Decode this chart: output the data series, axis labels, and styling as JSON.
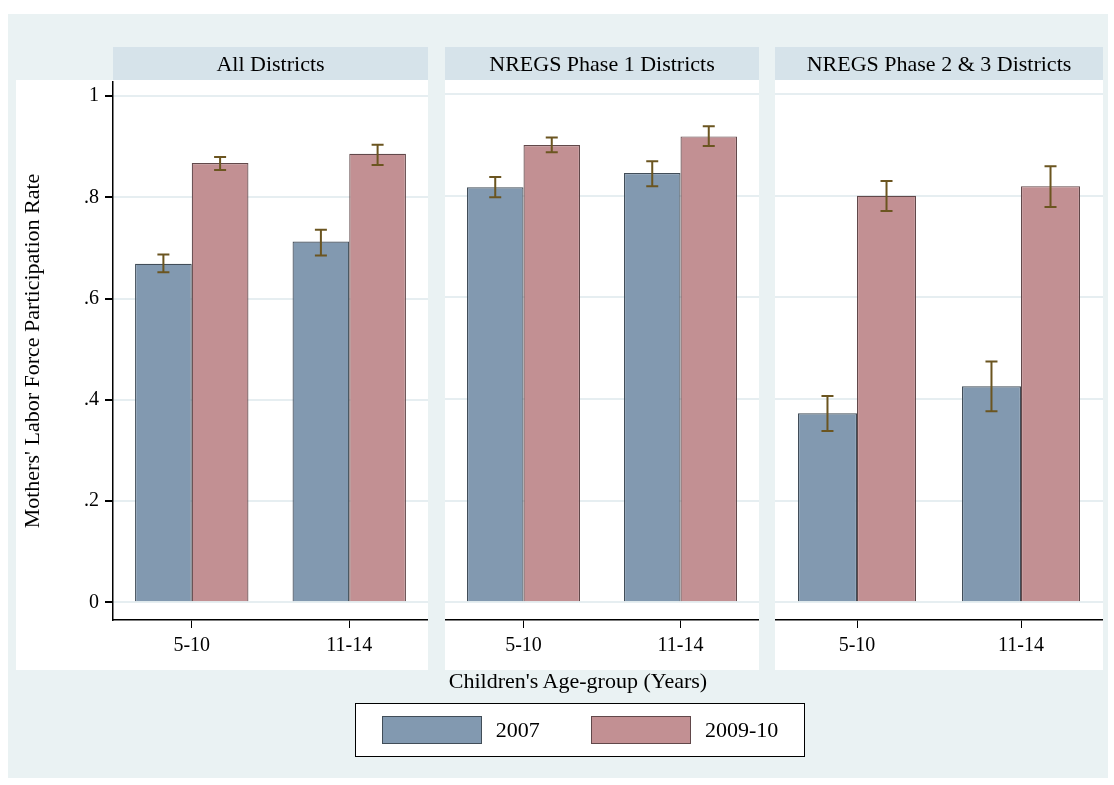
{
  "chart_data": [
    {
      "type": "bar",
      "title": "All Districts",
      "ylabel": "Mothers' Labor Force Participation Rate",
      "categories": [
        "5-10",
        "11-14"
      ],
      "ylim": [
        -0.035,
        1.028
      ],
      "yticks": [
        0,
        {
          "value": 0.2,
          "label": ".2"
        },
        {
          "value": 0.4,
          "label": ".4"
        },
        {
          "value": 0.6,
          "label": ".6"
        },
        {
          "value": 0.8,
          "label": ".8"
        },
        1
      ],
      "grid": "y",
      "legend": "bottom",
      "series": [
        {
          "name": "2007",
          "color": "#8299b0",
          "values": [
            0.669,
            0.713
          ],
          "errors": [
            [
              0.652,
              0.687
            ],
            [
              0.685,
              0.736
            ]
          ]
        },
        {
          "name": "2009-10",
          "color": "#c29093",
          "values": [
            0.868,
            0.886
          ],
          "errors": [
            [
              0.854,
              0.88
            ],
            [
              0.864,
              0.904
            ]
          ]
        }
      ]
    },
    {
      "type": "bar",
      "title": "NREGS Phase 1 Districts",
      "xlabel": "Children's Age-group (Years)",
      "categories": [
        "5-10",
        "11-14"
      ],
      "ylim": [
        -0.035,
        1.028
      ],
      "yticks": [
        {
          "value": 0,
          "label": null
        },
        {
          "value": 0.2,
          "label": null
        },
        {
          "value": 0.4,
          "label": null
        },
        {
          "value": 0.6,
          "label": null
        },
        {
          "value": 0.8,
          "label": null
        },
        {
          "value": 1,
          "label": null
        }
      ],
      "grid": "y",
      "tick_labels": "x",
      "series": [
        {
          "color": "#8299b0",
          "values": [
            0.817,
            0.845
          ],
          "errors": [
            [
              0.797,
              0.837
            ],
            [
              0.819,
              0.868
            ]
          ]
        },
        {
          "color": "#c29093",
          "values": [
            0.9,
            0.917
          ],
          "errors": [
            [
              0.886,
              0.915
            ],
            [
              0.898,
              0.937
            ]
          ]
        }
      ]
    },
    {
      "type": "bar",
      "title": "NREGS Phase 2 & 3 Districts",
      "categories": [
        "5-10",
        "11-14"
      ],
      "ylim": [
        -0.035,
        1.028
      ],
      "yticks": [
        {
          "value": 0,
          "label": null
        },
        {
          "value": 0.2,
          "label": null
        },
        {
          "value": 0.4,
          "label": null
        },
        {
          "value": 0.6,
          "label": null
        },
        {
          "value": 0.8,
          "label": null
        },
        {
          "value": 1,
          "label": null
        }
      ],
      "grid": "y",
      "tick_labels": "x",
      "series": [
        {
          "color": "#8299b0",
          "values": [
            0.372,
            0.425
          ],
          "errors": [
            [
              0.337,
              0.406
            ],
            [
              0.376,
              0.474
            ]
          ]
        },
        {
          "color": "#c29093",
          "values": [
            0.8,
            0.819
          ],
          "errors": [
            [
              0.77,
              0.829
            ],
            [
              0.778,
              0.858
            ]
          ]
        }
      ]
    }
  ]
}
